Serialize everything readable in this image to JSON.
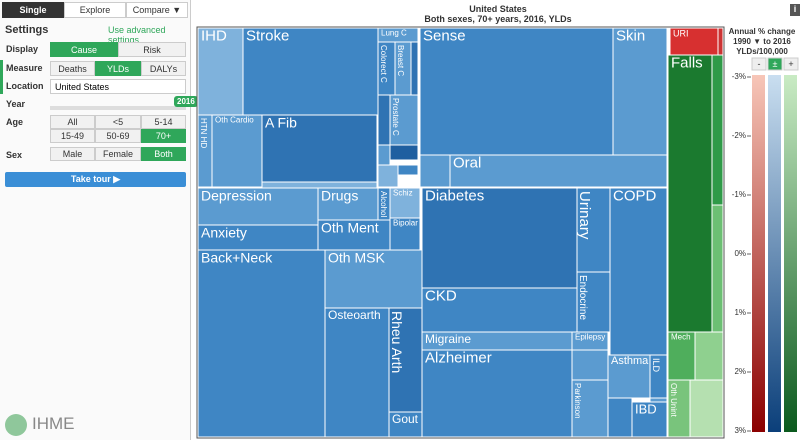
{
  "tabs": [
    "Single",
    "Explore",
    "Compare ▼"
  ],
  "settings": {
    "title": "Settings",
    "advanced": "Use advanced settings",
    "display": {
      "label": "Display",
      "options": [
        "Cause",
        "Risk"
      ]
    },
    "measure": {
      "label": "Measure",
      "options": [
        "Deaths",
        "YLDs",
        "DALYs"
      ]
    },
    "location": {
      "label": "Location",
      "value": "United States"
    },
    "year": {
      "label": "Year",
      "value": "2016"
    },
    "age": {
      "label": "Age",
      "options": [
        "All",
        "<5",
        "5-14",
        "15-49",
        "50-69",
        "70+"
      ]
    },
    "sex": {
      "label": "Sex",
      "options": [
        "Male",
        "Female",
        "Both"
      ]
    },
    "tour": "Take tour ▶"
  },
  "logo": "IHME",
  "header": {
    "title": "United States",
    "subtitle": "Both sexes, 70+ years, 2016, YLDs",
    "info": "i"
  },
  "treemap": {
    "labels": [
      "IHD",
      "Stroke",
      "HTN HD",
      "Oth Cardio",
      "A Fib",
      "Lung C",
      "Colorect C",
      "Breast C",
      "Prostate C",
      "Sense",
      "Skin",
      "Oral",
      "Depression",
      "Anxiety",
      "Drugs",
      "Oth Ment",
      "Alcohol",
      "Schiz",
      "Bipolar",
      "Back+Neck",
      "Oth MSK",
      "Osteoarth",
      "Rheu Arth",
      "Gout",
      "Diabetes",
      "Urinary",
      "Endocrine",
      "CKD",
      "COPD",
      "Migraine",
      "Epilepsy",
      "Alzheimer",
      "Asthma",
      "ILD",
      "Parkinson",
      "IBD",
      "URI",
      "Falls",
      "Mech",
      "Oth Unint"
    ]
  },
  "legend": {
    "title": [
      "Annual % change",
      "1990 ▼ to 2016",
      "YLDs/100,000"
    ],
    "buttons": [
      "-",
      "±",
      "+"
    ],
    "ticks": [
      "-3%",
      "-2%",
      "-1%",
      "0%",
      "1%",
      "2%",
      "3%"
    ]
  }
}
